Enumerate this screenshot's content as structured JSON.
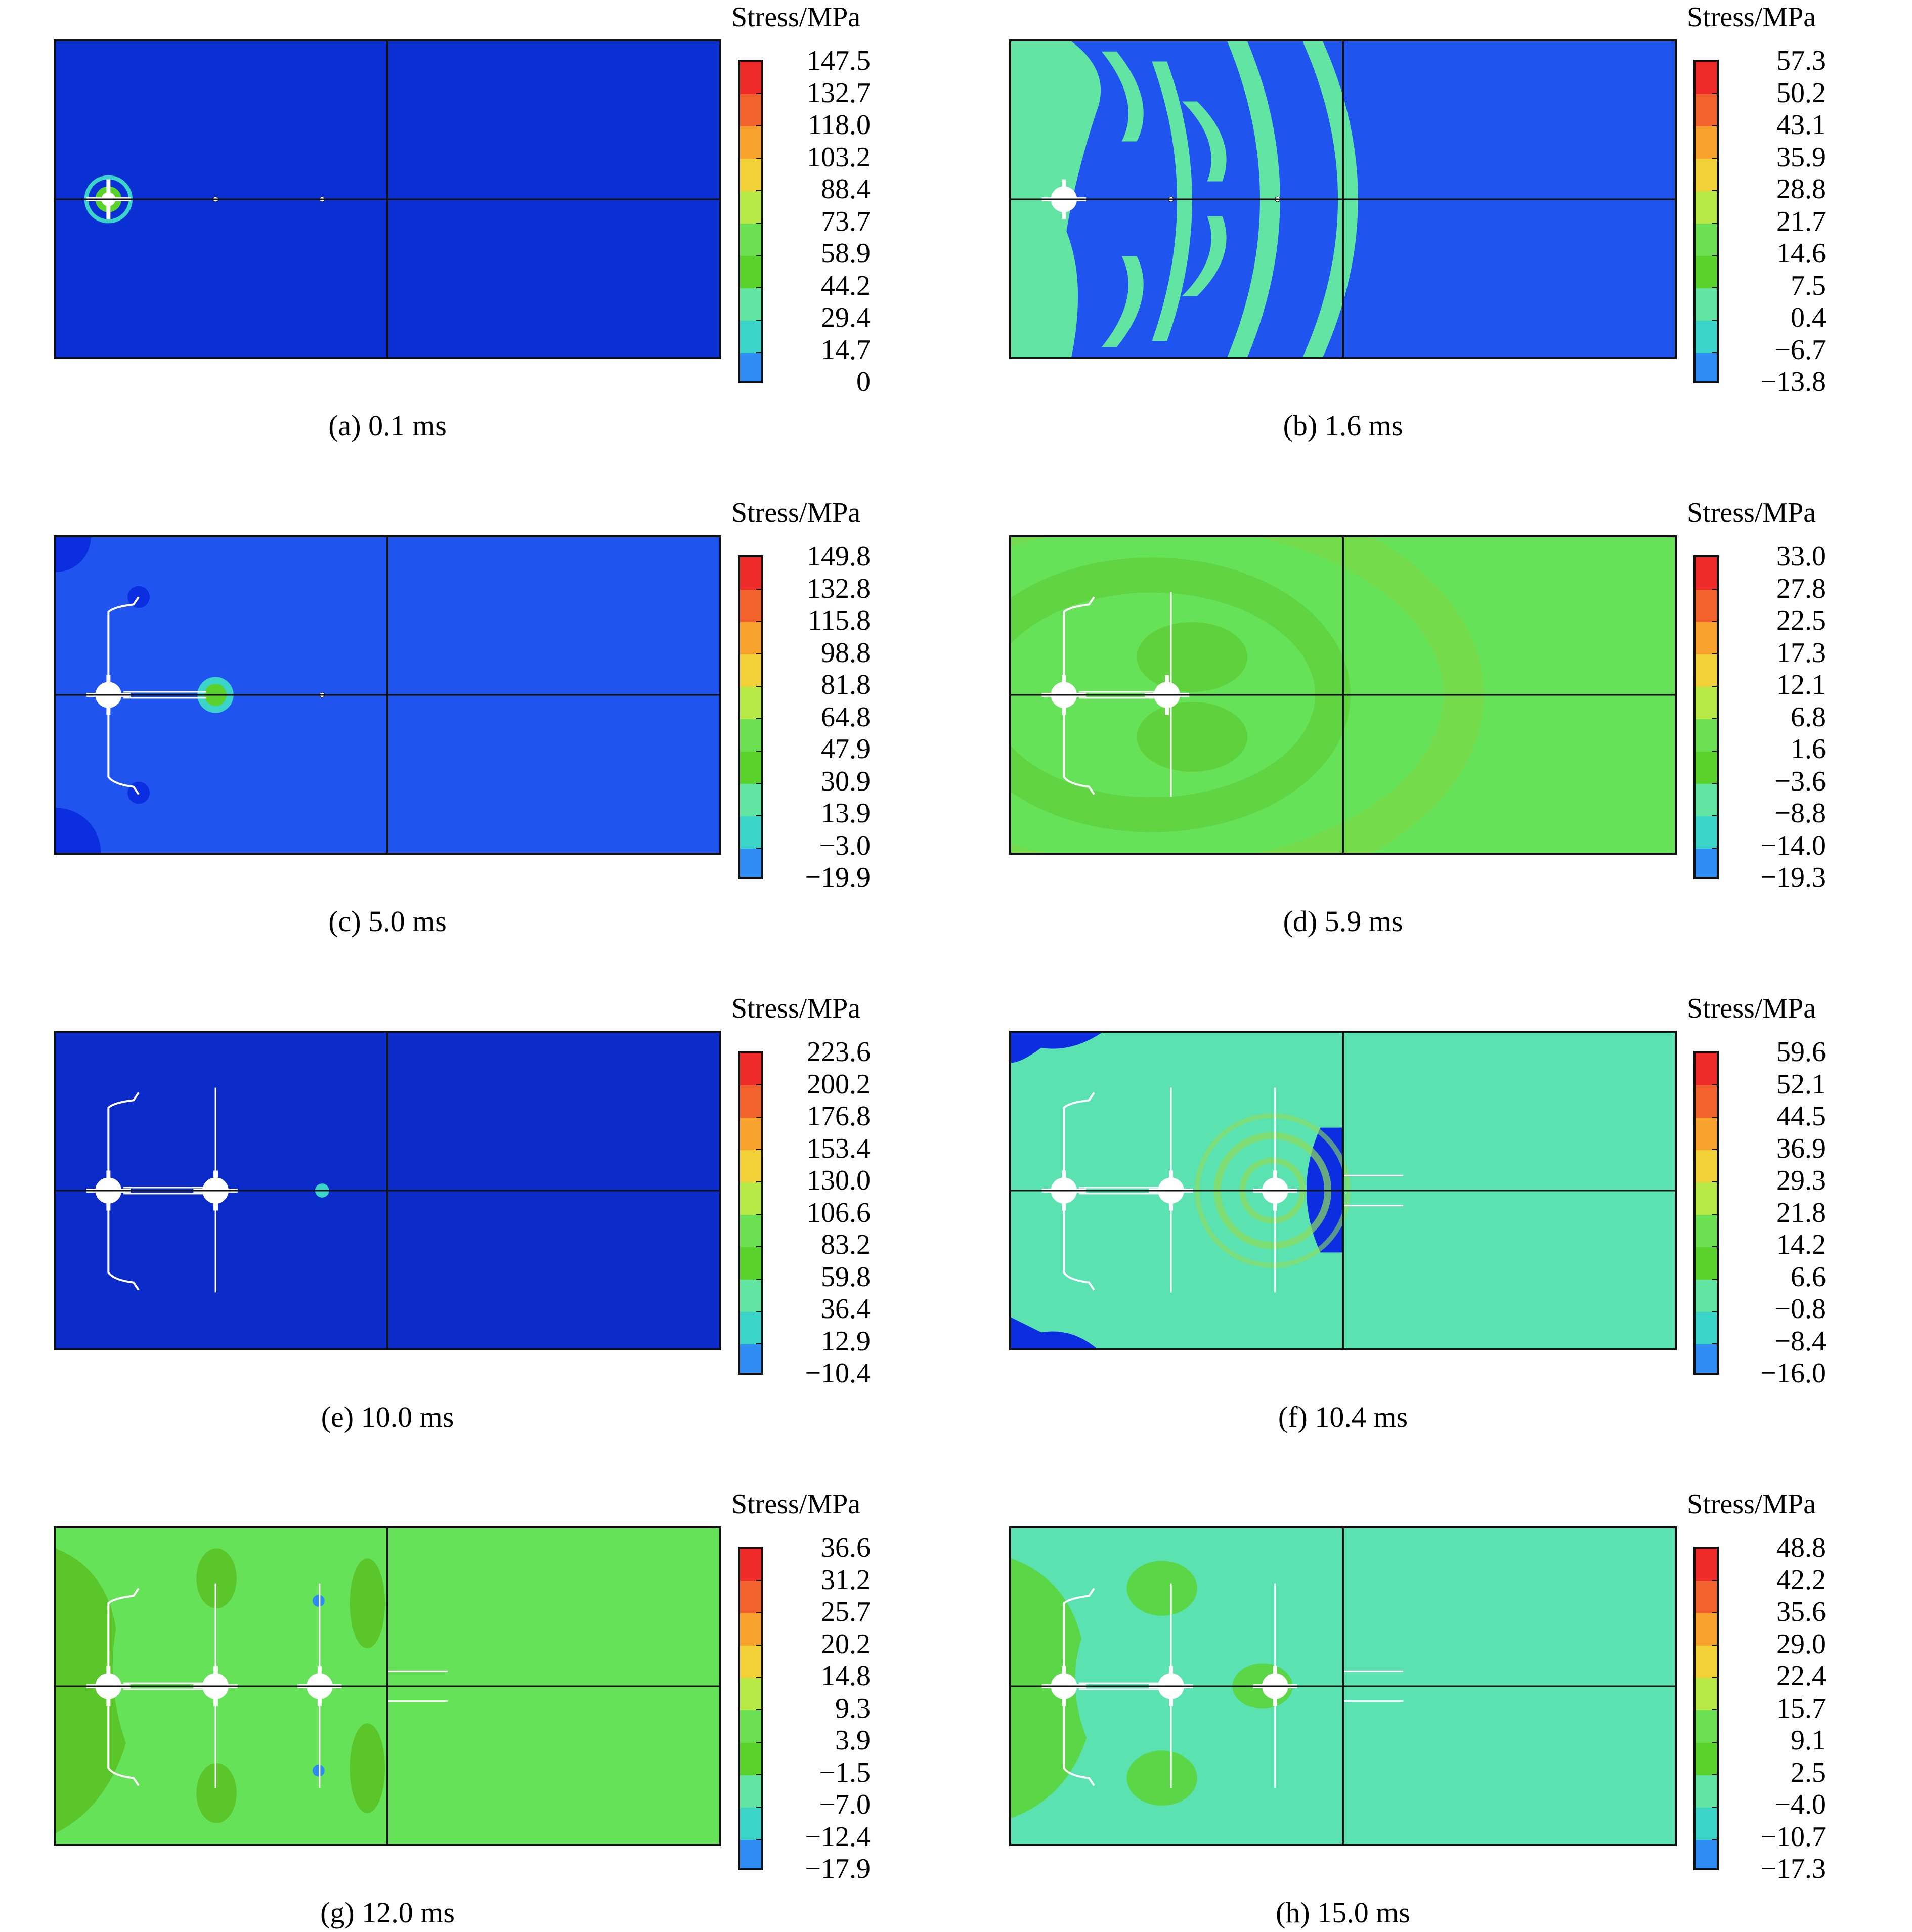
{
  "colors": {
    "scale": [
      "#0a2ee0",
      "#2f8cf5",
      "#3ad4c8",
      "#62e5a3",
      "#5ad22c",
      "#6be052",
      "#b7ea46",
      "#f2d037",
      "#f6a22c",
      "#f2622d",
      "#ef2b2a"
    ],
    "crack": "#ffffff",
    "frame": "#111111"
  },
  "panels": [
    {
      "id": "a",
      "unit_title": "Stress/MPa",
      "caption": "(a) 0.1 ms",
      "scale_labels": [
        "147.5",
        "132.7",
        "118.0",
        "103.2",
        "88.4",
        "73.7",
        "58.9",
        "44.2",
        "29.4",
        "14.7",
        "0"
      ],
      "background": "#0a2fd3"
    },
    {
      "id": "b",
      "unit_title": "Stress/MPa",
      "caption": "(b) 1.6 ms",
      "scale_labels": [
        "57.3",
        "50.2",
        "43.1",
        "35.9",
        "28.8",
        "21.7",
        "14.6",
        "7.5",
        "0.4",
        "−6.7",
        "−13.8"
      ],
      "background": "#1f55ee"
    },
    {
      "id": "c",
      "unit_title": "Stress/MPa",
      "caption": "(c) 5.0 ms",
      "scale_labels": [
        "149.8",
        "132.8",
        "115.8",
        "98.8",
        "81.8",
        "64.8",
        "47.9",
        "30.9",
        "13.9",
        "−3.0",
        "−19.9"
      ],
      "background": "#1f55ee"
    },
    {
      "id": "d",
      "unit_title": "Stress/MPa",
      "caption": "(d) 5.9 ms",
      "scale_labels": [
        "33.0",
        "27.8",
        "22.5",
        "17.3",
        "12.1",
        "6.8",
        "1.6",
        "−3.6",
        "−8.8",
        "−14.0",
        "−19.3"
      ],
      "background": "#66e258"
    },
    {
      "id": "e",
      "unit_title": "Stress/MPa",
      "caption": "(e) 10.0 ms",
      "scale_labels": [
        "223.6",
        "200.2",
        "176.8",
        "153.4",
        "130.0",
        "106.6",
        "83.2",
        "59.8",
        "36.4",
        "12.9",
        "−10.4"
      ],
      "background": "#0a2bc7"
    },
    {
      "id": "f",
      "unit_title": "Stress/MPa",
      "caption": "(f) 10.4 ms",
      "scale_labels": [
        "59.6",
        "52.1",
        "44.5",
        "36.9",
        "29.3",
        "21.8",
        "14.2",
        "6.6",
        "−0.8",
        "−8.4",
        "−16.0"
      ],
      "background": "#5ae3b0"
    },
    {
      "id": "g",
      "unit_title": "Stress/MPa",
      "caption": "(g) 12.0 ms",
      "scale_labels": [
        "36.6",
        "31.2",
        "25.7",
        "20.2",
        "14.8",
        "9.3",
        "3.9",
        "−1.5",
        "−7.0",
        "−12.4",
        "−17.9"
      ],
      "background": "#66e258"
    },
    {
      "id": "h",
      "unit_title": "Stress/MPa",
      "caption": "(h) 15.0 ms",
      "scale_labels": [
        "48.8",
        "42.2",
        "35.6",
        "29.0",
        "22.4",
        "15.7",
        "9.1",
        "2.5",
        "−4.0",
        "−10.7",
        "−17.3"
      ],
      "background": "#5ae3b0"
    }
  ]
}
